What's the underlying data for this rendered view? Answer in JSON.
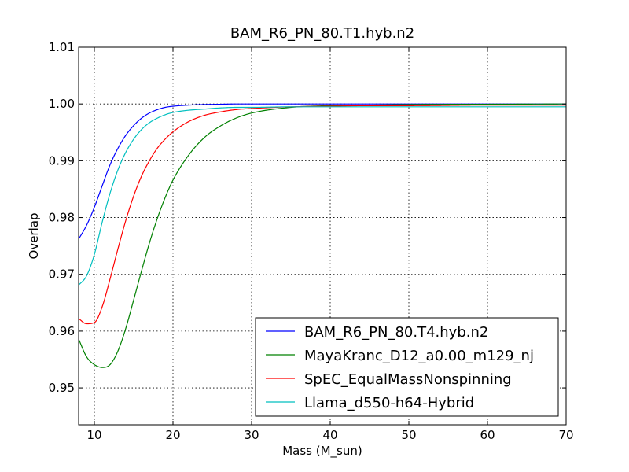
{
  "chart_data": {
    "type": "line",
    "title": "BAM_R6_PN_80.T1.hyb.n2",
    "xlabel": "Mass (M_sun)",
    "ylabel": "Overlap",
    "xlim": [
      8,
      70
    ],
    "ylim": [
      0.9435,
      1.01
    ],
    "x_ticks": [
      10,
      20,
      30,
      40,
      50,
      60,
      70
    ],
    "x_tick_labels": [
      "10",
      "20",
      "30",
      "40",
      "50",
      "60",
      "70"
    ],
    "y_ticks": [
      0.95,
      0.96,
      0.97,
      0.98,
      0.99,
      1.0,
      1.01
    ],
    "y_tick_labels": [
      "0.95",
      "0.96",
      "0.97",
      "0.98",
      "0.99",
      "1.00",
      "1.01"
    ],
    "grid": true,
    "legend_position": "lower-right",
    "x": [
      8,
      9,
      10,
      11,
      12,
      13,
      14,
      15,
      16,
      17,
      18,
      19,
      20,
      22,
      24,
      26,
      28,
      30,
      35,
      40,
      45,
      50,
      60,
      70
    ],
    "series": [
      {
        "name": "BAM_R6_PN_80.T4.hyb.n2",
        "color": "#0000ff",
        "values": [
          0.9762,
          0.9786,
          0.9818,
          0.9856,
          0.9893,
          0.9922,
          0.9945,
          0.9962,
          0.9975,
          0.9984,
          0.999,
          0.9994,
          0.9996,
          0.9998,
          0.9999,
          0.99995,
          1.0,
          1.0,
          1.0,
          1.0,
          1.0,
          1.0,
          1.0,
          1.0
        ]
      },
      {
        "name": "MayaKranc_D12_a0.00_m129_nj",
        "color": "#008000",
        "values": [
          0.9586,
          0.9555,
          0.9541,
          0.9536,
          0.9541,
          0.9565,
          0.9605,
          0.9655,
          0.9706,
          0.9755,
          0.9798,
          0.9835,
          0.9866,
          0.991,
          0.9941,
          0.9961,
          0.9975,
          0.9984,
          0.9994,
          0.9997,
          0.9998,
          0.9999,
          0.99995,
          1.0
        ]
      },
      {
        "name": "SpEC_EqualMassNonspinning",
        "color": "#ff0000",
        "values": [
          0.9622,
          0.9613,
          0.9615,
          0.9643,
          0.9692,
          0.9745,
          0.9795,
          0.9838,
          0.9873,
          0.99,
          0.9922,
          0.9938,
          0.9951,
          0.9969,
          0.998,
          0.9986,
          0.999,
          0.9992,
          0.9995,
          0.9996,
          0.9997,
          0.9997,
          0.9998,
          0.9998
        ]
      },
      {
        "name": "Llama_d550-h64-Hybrid",
        "color": "#00bfbf",
        "values": [
          0.9681,
          0.9697,
          0.9735,
          0.9792,
          0.9843,
          0.9884,
          0.9915,
          0.9938,
          0.9955,
          0.9967,
          0.9975,
          0.9981,
          0.9985,
          0.9989,
          0.9991,
          0.9993,
          0.9994,
          0.9994,
          0.9995,
          0.9995,
          0.9995,
          0.9995,
          0.9995,
          0.9995
        ]
      }
    ]
  }
}
